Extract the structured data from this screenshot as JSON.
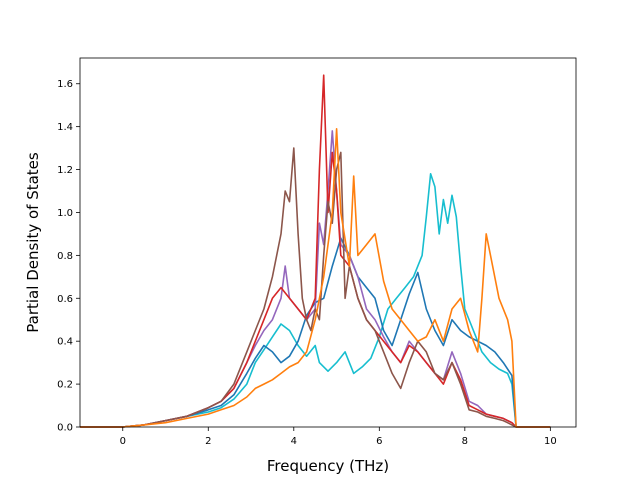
{
  "chart_data": {
    "type": "line",
    "title": "",
    "xlabel": "Frequency (THz)",
    "ylabel": "Partial Density of States",
    "xlim": [
      -1.0,
      10.6
    ],
    "ylim": [
      0.0,
      1.72
    ],
    "xticks": [
      "0",
      "2",
      "4",
      "6",
      "8",
      "10"
    ],
    "yticks": [
      "0.0",
      "0.2",
      "0.4",
      "0.6",
      "0.8",
      "1.0",
      "1.2",
      "1.4",
      "1.6"
    ],
    "grid": false,
    "legend": "none",
    "series": [
      {
        "color": "#17becf",
        "x": [
          -1.0,
          0.0,
          0.5,
          1.0,
          1.5,
          2.0,
          2.3,
          2.6,
          2.9,
          3.1,
          3.3,
          3.5,
          3.7,
          3.9,
          4.1,
          4.3,
          4.5,
          4.6,
          4.8,
          5.0,
          5.2,
          5.4,
          5.6,
          5.8,
          6.0,
          6.2,
          6.4,
          6.6,
          6.8,
          7.0,
          7.1,
          7.2,
          7.3,
          7.4,
          7.5,
          7.6,
          7.7,
          7.8,
          7.9,
          8.0,
          8.2,
          8.4,
          8.6,
          8.8,
          9.0,
          9.1,
          9.2,
          10.0
        ],
        "y": [
          0.0,
          0.0,
          0.01,
          0.03,
          0.05,
          0.07,
          0.09,
          0.13,
          0.2,
          0.3,
          0.36,
          0.42,
          0.48,
          0.45,
          0.38,
          0.33,
          0.38,
          0.3,
          0.26,
          0.3,
          0.35,
          0.25,
          0.28,
          0.32,
          0.42,
          0.55,
          0.6,
          0.65,
          0.7,
          0.8,
          0.98,
          1.18,
          1.12,
          0.9,
          1.06,
          0.95,
          1.08,
          0.98,
          0.75,
          0.55,
          0.45,
          0.35,
          0.3,
          0.27,
          0.25,
          0.2,
          0.0,
          0.0
        ]
      },
      {
        "color": "#1f77b4",
        "x": [
          -1.0,
          0.0,
          0.5,
          1.0,
          1.5,
          2.0,
          2.3,
          2.6,
          2.9,
          3.1,
          3.3,
          3.5,
          3.7,
          3.9,
          4.1,
          4.3,
          4.5,
          4.7,
          4.9,
          5.1,
          5.3,
          5.5,
          5.7,
          5.9,
          6.1,
          6.3,
          6.5,
          6.7,
          6.9,
          7.1,
          7.3,
          7.5,
          7.7,
          7.9,
          8.1,
          8.3,
          8.5,
          8.7,
          8.9,
          9.0,
          9.1,
          9.2,
          10.0
        ],
        "y": [
          0.0,
          0.0,
          0.01,
          0.03,
          0.05,
          0.08,
          0.1,
          0.15,
          0.25,
          0.32,
          0.38,
          0.35,
          0.3,
          0.33,
          0.4,
          0.52,
          0.58,
          0.6,
          0.75,
          0.88,
          0.8,
          0.7,
          0.65,
          0.6,
          0.45,
          0.38,
          0.5,
          0.62,
          0.72,
          0.55,
          0.45,
          0.38,
          0.5,
          0.45,
          0.42,
          0.4,
          0.38,
          0.35,
          0.3,
          0.27,
          0.24,
          0.0,
          0.0
        ]
      },
      {
        "color": "#9467bd",
        "x": [
          -1.0,
          0.0,
          0.5,
          1.0,
          1.5,
          2.0,
          2.3,
          2.6,
          2.9,
          3.1,
          3.3,
          3.5,
          3.7,
          3.8,
          3.9,
          4.1,
          4.3,
          4.5,
          4.6,
          4.7,
          4.8,
          4.9,
          5.0,
          5.1,
          5.3,
          5.5,
          5.7,
          5.9,
          6.1,
          6.3,
          6.5,
          6.7,
          6.9,
          7.1,
          7.3,
          7.5,
          7.7,
          7.9,
          8.1,
          8.3,
          8.5,
          8.7,
          8.9,
          9.0,
          9.1,
          9.2,
          10.0
        ],
        "y": [
          0.0,
          0.0,
          0.01,
          0.03,
          0.05,
          0.09,
          0.12,
          0.18,
          0.3,
          0.38,
          0.45,
          0.5,
          0.6,
          0.75,
          0.6,
          0.55,
          0.5,
          0.55,
          0.95,
          0.85,
          1.1,
          1.38,
          1.1,
          0.85,
          0.8,
          0.7,
          0.55,
          0.5,
          0.42,
          0.35,
          0.3,
          0.4,
          0.35,
          0.3,
          0.25,
          0.22,
          0.35,
          0.25,
          0.12,
          0.1,
          0.06,
          0.05,
          0.04,
          0.03,
          0.02,
          0.0,
          0.0
        ]
      },
      {
        "color": "#d62728",
        "x": [
          -1.0,
          0.0,
          0.5,
          1.0,
          1.5,
          2.0,
          2.3,
          2.6,
          2.9,
          3.1,
          3.3,
          3.5,
          3.7,
          3.9,
          4.1,
          4.3,
          4.5,
          4.6,
          4.7,
          4.8,
          4.9,
          5.0,
          5.1,
          5.3,
          5.5,
          5.7,
          5.9,
          6.1,
          6.3,
          6.5,
          6.7,
          6.9,
          7.1,
          7.3,
          7.5,
          7.7,
          7.9,
          8.1,
          8.3,
          8.5,
          8.7,
          8.9,
          9.0,
          9.1,
          9.2,
          10.0
        ],
        "y": [
          0.0,
          0.0,
          0.01,
          0.03,
          0.05,
          0.09,
          0.12,
          0.18,
          0.3,
          0.4,
          0.5,
          0.6,
          0.65,
          0.6,
          0.55,
          0.5,
          0.6,
          1.2,
          1.64,
          1.0,
          1.28,
          1.1,
          0.8,
          0.75,
          0.6,
          0.5,
          0.45,
          0.4,
          0.35,
          0.3,
          0.38,
          0.35,
          0.3,
          0.25,
          0.2,
          0.3,
          0.22,
          0.1,
          0.08,
          0.06,
          0.05,
          0.04,
          0.03,
          0.02,
          0.0,
          0.0
        ]
      },
      {
        "color": "#8c564b",
        "x": [
          -1.0,
          0.0,
          0.5,
          1.0,
          1.5,
          2.0,
          2.3,
          2.6,
          2.9,
          3.1,
          3.3,
          3.5,
          3.7,
          3.8,
          3.9,
          4.0,
          4.1,
          4.2,
          4.3,
          4.4,
          4.5,
          4.6,
          4.7,
          4.8,
          4.9,
          5.0,
          5.1,
          5.2,
          5.3,
          5.5,
          5.7,
          5.9,
          6.1,
          6.3,
          6.5,
          6.7,
          6.9,
          7.1,
          7.3,
          7.5,
          7.7,
          7.9,
          8.1,
          8.3,
          8.5,
          8.7,
          8.9,
          9.0,
          9.1,
          9.2,
          10.0
        ],
        "y": [
          0.0,
          0.0,
          0.01,
          0.03,
          0.05,
          0.09,
          0.12,
          0.2,
          0.35,
          0.45,
          0.55,
          0.7,
          0.9,
          1.1,
          1.05,
          1.3,
          0.9,
          0.6,
          0.5,
          0.45,
          0.55,
          0.5,
          0.8,
          1.05,
          0.95,
          1.2,
          1.28,
          0.6,
          0.75,
          0.6,
          0.5,
          0.45,
          0.35,
          0.25,
          0.18,
          0.3,
          0.4,
          0.35,
          0.25,
          0.22,
          0.3,
          0.2,
          0.08,
          0.07,
          0.05,
          0.04,
          0.03,
          0.02,
          0.01,
          0.0,
          0.0
        ]
      },
      {
        "color": "#ff7f0e",
        "x": [
          -1.0,
          0.0,
          0.5,
          1.0,
          1.5,
          2.0,
          2.3,
          2.6,
          2.9,
          3.1,
          3.3,
          3.5,
          3.7,
          3.9,
          4.1,
          4.3,
          4.5,
          4.7,
          4.9,
          5.0,
          5.1,
          5.3,
          5.4,
          5.5,
          5.7,
          5.9,
          6.1,
          6.3,
          6.5,
          6.7,
          6.9,
          7.1,
          7.3,
          7.5,
          7.7,
          7.9,
          8.1,
          8.3,
          8.4,
          8.5,
          8.6,
          8.8,
          9.0,
          9.1,
          9.2,
          10.0
        ],
        "y": [
          0.0,
          0.0,
          0.01,
          0.02,
          0.04,
          0.06,
          0.08,
          0.1,
          0.14,
          0.18,
          0.2,
          0.22,
          0.25,
          0.28,
          0.3,
          0.35,
          0.5,
          0.7,
          1.0,
          1.39,
          1.0,
          0.75,
          1.17,
          0.8,
          0.85,
          0.9,
          0.68,
          0.55,
          0.5,
          0.45,
          0.4,
          0.42,
          0.5,
          0.4,
          0.55,
          0.6,
          0.45,
          0.35,
          0.6,
          0.9,
          0.8,
          0.6,
          0.5,
          0.4,
          0.0,
          0.0
        ]
      }
    ]
  }
}
